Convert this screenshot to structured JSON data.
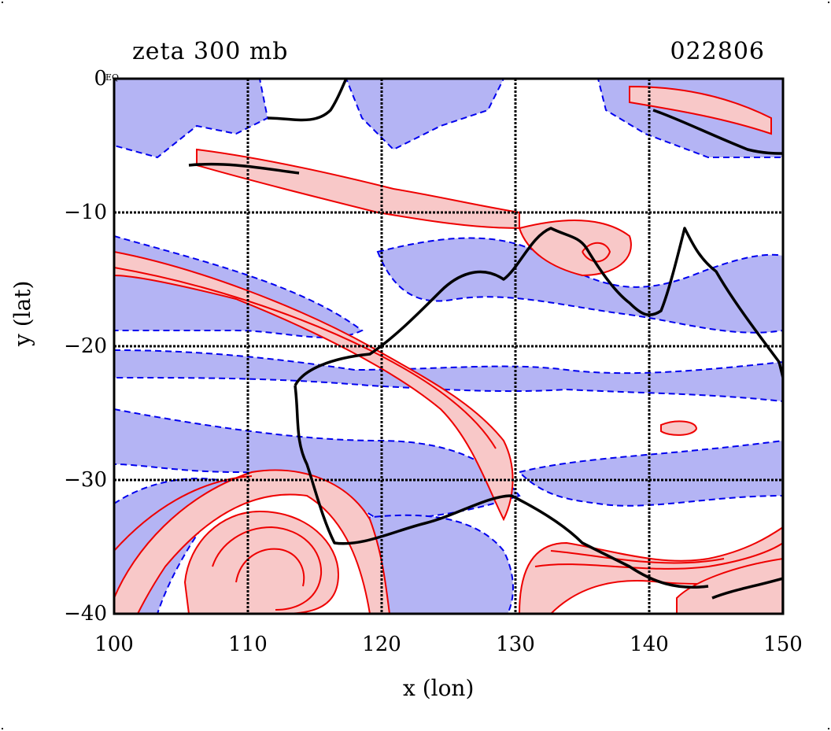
{
  "title": "zeta 300 mb",
  "stamp": "022806",
  "corner_note": "EQ",
  "axes": {
    "x_label": "x (lon)",
    "y_label": "y (lat)",
    "x_ticks": [
      "100",
      "110",
      "120",
      "130",
      "140",
      "150"
    ],
    "y_ticks": [
      "0",
      "−10",
      "−20",
      "−30",
      "−40"
    ]
  },
  "colors": {
    "positive_fill": "#f8c8c8",
    "positive_line": "#ee0000",
    "negative_fill": "#b4b4f4",
    "negative_line": "#0000ee",
    "coast": "#000000",
    "grid": "#000000"
  },
  "map": {
    "lon_range": [
      100,
      150
    ],
    "lat_range": [
      -40,
      0
    ],
    "grid_lons": [
      110,
      120,
      130,
      140
    ],
    "grid_lats": [
      -10,
      -20,
      -30
    ]
  }
}
